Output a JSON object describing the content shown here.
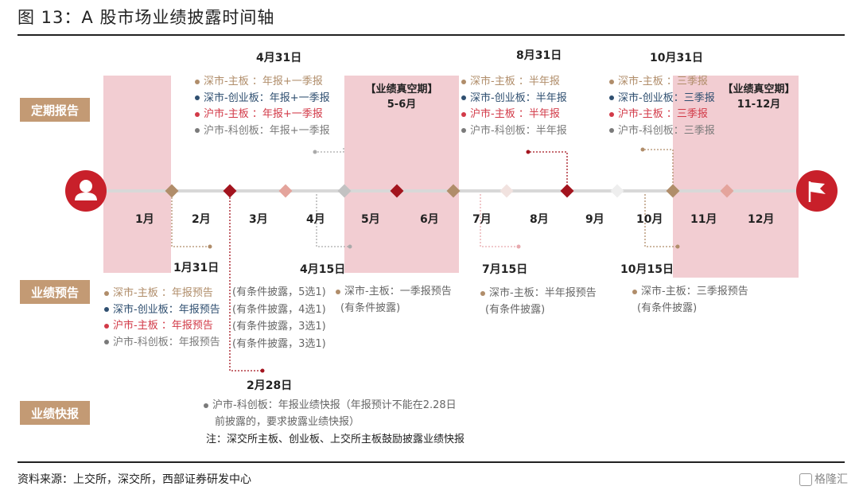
{
  "title": "图 13：A 股市场业绩披露时间轴",
  "badges": {
    "periodic": "定期报告",
    "forecast": "业绩预告",
    "express": "业绩快报"
  },
  "months": [
    "1月",
    "2月",
    "3月",
    "4月",
    "5月",
    "6月",
    "7月",
    "8月",
    "9月",
    "10月",
    "11月",
    "12月"
  ],
  "dates": {
    "apr31": "4月31日",
    "aug31": "8月31日",
    "oct31": "10月31日",
    "jan31": "1月31日",
    "apr15": "4月15日",
    "jul15": "7月15日",
    "oct15": "10月15日",
    "feb28": "2月28日"
  },
  "vacuum": {
    "may_jun": {
      "label": "【业绩真空期】",
      "range": "5-6月"
    },
    "nov_dec": {
      "label": "【业绩真空期】",
      "range": "11-12月"
    }
  },
  "colors": {
    "brown": "#b08d6a",
    "navy": "#2f4f70",
    "red": "#d23a48",
    "gray": "#7a7a7a",
    "dark_red": "#a3141e",
    "pink": "#f2cdd2",
    "badge": "#c39a74"
  },
  "periodic": {
    "annual_q1": [
      {
        "text": "深市-主板  ：年报+一季报",
        "color": "brown"
      },
      {
        "text": "深市-创业板：年报+一季报",
        "color": "navy"
      },
      {
        "text": "沪市-主板  ：年报+一季报",
        "color": "red"
      },
      {
        "text": "沪市-科创板：年报+一季报",
        "color": "gray"
      }
    ],
    "half": [
      {
        "text": "深市-主板  ：半年报",
        "color": "brown"
      },
      {
        "text": "深市-创业板：半年报",
        "color": "navy"
      },
      {
        "text": "沪市-主板  ：半年报",
        "color": "red"
      },
      {
        "text": "沪市-科创板：半年报",
        "color": "gray"
      }
    ],
    "q3": [
      {
        "text": "深市-主板  ：三季报",
        "color": "brown"
      },
      {
        "text": "深市-创业板：三季报",
        "color": "navy"
      },
      {
        "text": "沪市-主板  ：三季报",
        "color": "red"
      },
      {
        "text": "沪市-科创板：三季报",
        "color": "gray"
      }
    ]
  },
  "forecast": {
    "annual": [
      {
        "text": "深市-主板  ：年报预告",
        "color": "brown"
      },
      {
        "text": "深市-创业板：年报预告",
        "color": "navy"
      },
      {
        "text": "沪市-主板  ：年报预告",
        "color": "red"
      },
      {
        "text": "沪市-科创板：年报预告",
        "color": "gray"
      }
    ],
    "annual_cond": [
      "(有条件披露，5选1)",
      "(有条件披露，4选1)",
      "(有条件披露，3选1)",
      "(有条件披露，3选1)"
    ],
    "q1": {
      "text": "深市-主板：一季报预告",
      "cond": "(有条件披露)"
    },
    "half": {
      "text": "深市-主板：半年报预告",
      "cond": "(有条件披露)"
    },
    "q3": {
      "text": "深市-主板：三季报预告",
      "cond": "(有条件披露)"
    }
  },
  "express": {
    "line1": "沪市-科创板：年报业绩快报（年报预计不能在2.28日",
    "line2": "前披露的，要求披露业绩快报）",
    "note": "注：深交所主板、创业板、上交所主板鼓励披露业绩快报"
  },
  "footer": "资料来源：上交所，深交所，西部证券研发中心",
  "watermark": "格隆汇",
  "icons": {
    "start": "person-icon",
    "end": "flag-icon"
  }
}
